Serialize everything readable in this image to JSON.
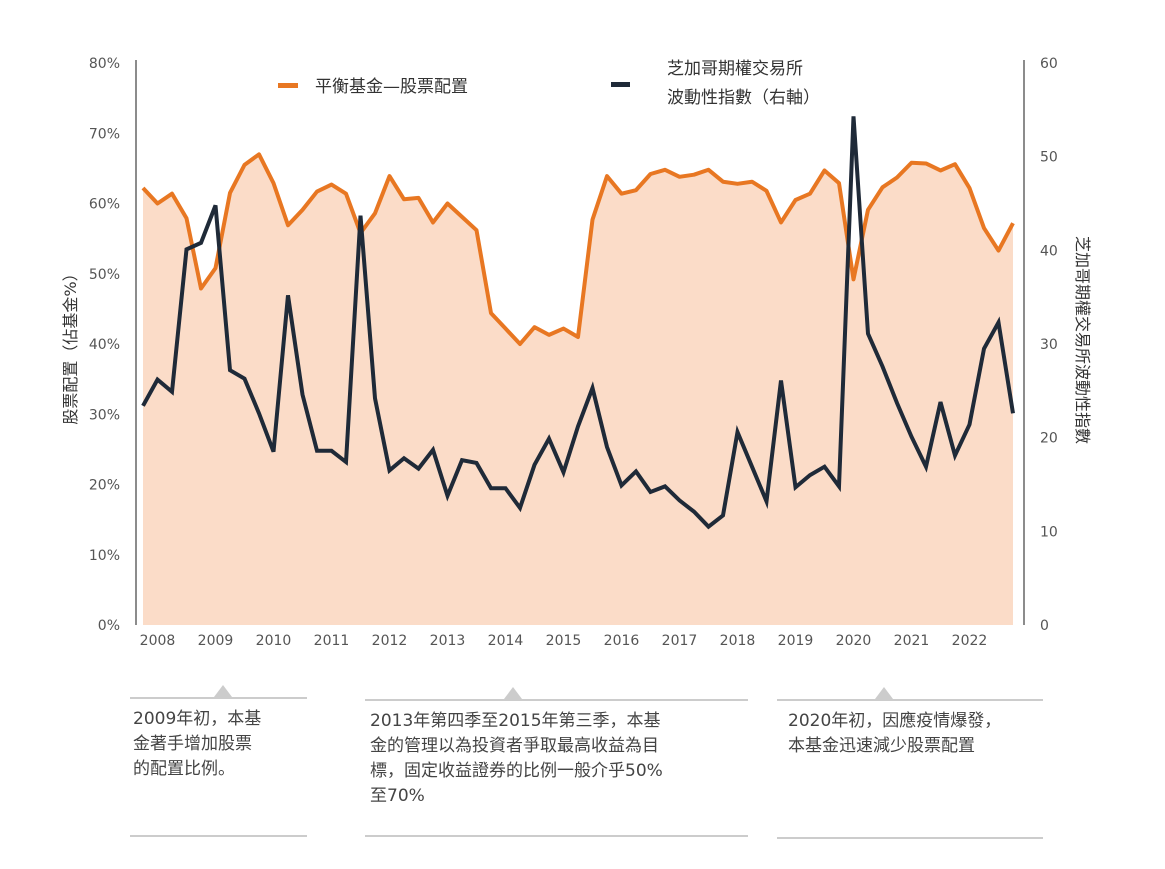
{
  "colors": {
    "allocation": "#e87722",
    "allocation_fill": "#fbdcc8",
    "vix": "#1f2a38",
    "axis": "#666666",
    "note_line": "#cccccc"
  },
  "chart_data": {
    "type": "line",
    "frequency": "quarterly",
    "x_tick_labels": [
      "2008",
      "2009",
      "2010",
      "2011",
      "2012",
      "2013",
      "2014",
      "2015",
      "2016",
      "2017",
      "2018",
      "2019",
      "2020",
      "2021",
      "2022"
    ],
    "left_axis": {
      "title": "股票配置（佔基金%）",
      "ylim": [
        0,
        80
      ],
      "ticks": [
        "0%",
        "10%",
        "20%",
        "30%",
        "40%",
        "50%",
        "60%",
        "70%",
        "80%"
      ]
    },
    "right_axis": {
      "title": "芝加哥期權交易所波動性指數",
      "ylim": [
        0,
        60
      ],
      "ticks": [
        "0",
        "10",
        "20",
        "30",
        "40",
        "50",
        "60"
      ]
    },
    "legend": {
      "placement": "top-center",
      "items": [
        {
          "label": "平衡基金—股票配置"
        },
        {
          "label_line1": "芝加哥期權交易所",
          "label_line2": "波動性指數（右軸）"
        }
      ]
    },
    "series": [
      {
        "name": "平衡基金—股票配置",
        "axis": "left",
        "style": "area",
        "values": [
          62.2,
          60.0,
          61.4,
          57.9,
          47.9,
          50.8,
          61.5,
          65.5,
          67.0,
          62.9,
          56.9,
          59.1,
          61.7,
          62.7,
          61.4,
          55.8,
          58.6,
          63.9,
          60.6,
          60.8,
          57.3,
          60.0,
          58.1,
          56.2,
          44.4,
          42.2,
          40.0,
          42.4,
          41.3,
          42.2,
          41.0,
          57.7,
          63.9,
          61.4,
          61.9,
          64.2,
          64.8,
          63.8,
          64.1,
          64.8,
          63.1,
          62.8,
          63.1,
          61.8,
          57.3,
          60.5,
          61.4,
          64.7,
          62.9,
          49.2,
          59.1,
          62.3,
          63.7,
          65.8,
          65.7,
          64.7,
          65.6,
          62.2,
          56.5,
          53.3,
          57.2
        ]
      },
      {
        "name": "芝加哥期權交易所波動性指數（右軸）",
        "axis": "right",
        "style": "line",
        "values": [
          23.4,
          26.2,
          24.9,
          40.1,
          40.8,
          44.8,
          27.2,
          26.3,
          22.6,
          18.5,
          35.2,
          24.6,
          18.6,
          18.6,
          17.4,
          43.7,
          24.2,
          16.5,
          17.8,
          16.7,
          18.7,
          13.8,
          17.6,
          17.3,
          14.6,
          14.6,
          12.5,
          17.1,
          19.9,
          16.3,
          21.2,
          25.3,
          19.0,
          14.9,
          16.4,
          14.2,
          14.8,
          13.3,
          12.1,
          10.5,
          11.7,
          20.6,
          16.9,
          13.2,
          26.1,
          14.7,
          16.0,
          16.9,
          14.8,
          54.3,
          31.1,
          27.6,
          23.7,
          20.1,
          16.9,
          23.8,
          18.1,
          21.4,
          29.5,
          32.3,
          22.6
        ]
      }
    ]
  },
  "annotations": [
    {
      "text": "2009年初，本基\n金著手增加股票\n的配置比例。"
    },
    {
      "text": "2013年第四季至2015年第三季，本基\n金的管理以為投資者爭取最高收益為目\n標，固定收益證券的比例一般介乎50%\n至70%"
    },
    {
      "text": "2020年初，因應疫情爆發，\n本基金迅速減少股票配置"
    }
  ]
}
